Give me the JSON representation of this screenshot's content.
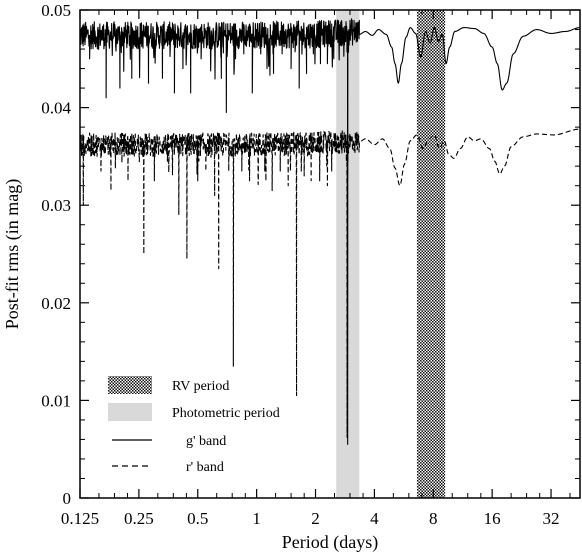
{
  "chart_data": {
    "type": "line",
    "xlabel": "Period (days)",
    "ylabel": "Post-fit rms (in mag)",
    "xscale": "log2",
    "xlim": [
      0.125,
      45
    ],
    "ylim": [
      0,
      0.05
    ],
    "x_ticks": [
      {
        "value": 0.125,
        "label": "0.125"
      },
      {
        "value": 0.25,
        "label": "0.25"
      },
      {
        "value": 0.5,
        "label": "0.5"
      },
      {
        "value": 1,
        "label": "1"
      },
      {
        "value": 2,
        "label": "2"
      },
      {
        "value": 4,
        "label": "4"
      },
      {
        "value": 8,
        "label": "8"
      },
      {
        "value": 16,
        "label": "16"
      },
      {
        "value": 32,
        "label": "32"
      }
    ],
    "y_ticks": [
      {
        "value": 0,
        "label": "0"
      },
      {
        "value": 0.01,
        "label": "0.01"
      },
      {
        "value": 0.02,
        "label": "0.02"
      },
      {
        "value": 0.03,
        "label": "0.03"
      },
      {
        "value": 0.04,
        "label": "0.04"
      },
      {
        "value": 0.05,
        "label": "0.05"
      }
    ],
    "grid": false,
    "legend_position": "bottom-left",
    "highlight_bands": [
      {
        "name": "RV period",
        "x_range": [
          6.6,
          9.2
        ],
        "style": "checkered",
        "color": "#222222"
      },
      {
        "name": "Photometric period",
        "x_range": [
          2.55,
          3.35
        ],
        "style": "solid",
        "color": "#d9d9d9"
      }
    ],
    "series": [
      {
        "name": "g' band",
        "style": "solid",
        "baseline": [
          [
            0.125,
            0.0474
          ],
          [
            0.5,
            0.0474
          ],
          [
            2,
            0.0475
          ],
          [
            3.3,
            0.0478
          ]
        ],
        "dips": [
          [
            0.14,
            0.045
          ],
          [
            0.17,
            0.041
          ],
          [
            0.2,
            0.042
          ],
          [
            0.23,
            0.043
          ],
          [
            0.28,
            0.0425
          ],
          [
            0.33,
            0.043
          ],
          [
            0.38,
            0.0415
          ],
          [
            0.42,
            0.044
          ],
          [
            0.46,
            0.0415
          ],
          [
            0.52,
            0.045
          ],
          [
            0.59,
            0.046
          ],
          [
            0.66,
            0.043
          ],
          [
            0.7,
            0.0395
          ],
          [
            0.78,
            0.045
          ],
          [
            0.86,
            0.0455
          ],
          [
            0.95,
            0.0415
          ],
          [
            1.05,
            0.0455
          ],
          [
            1.13,
            0.044
          ],
          [
            1.22,
            0.0435
          ],
          [
            1.35,
            0.0455
          ],
          [
            1.5,
            0.044
          ],
          [
            1.65,
            0.042
          ],
          [
            1.8,
            0.0435
          ],
          [
            1.95,
            0.0455
          ],
          [
            2.12,
            0.0445
          ],
          [
            2.3,
            0.0445
          ],
          [
            2.48,
            0.045
          ]
        ],
        "smooth": [
          [
            3.35,
            0.0475
          ],
          [
            3.6,
            0.0478
          ],
          [
            3.9,
            0.0474
          ],
          [
            4.2,
            0.048
          ],
          [
            4.6,
            0.0475
          ],
          [
            4.9,
            0.0462
          ],
          [
            5.1,
            0.0445
          ],
          [
            5.3,
            0.0425
          ],
          [
            5.5,
            0.0445
          ],
          [
            5.8,
            0.0472
          ],
          [
            6.1,
            0.0482
          ],
          [
            6.5,
            0.0476
          ],
          [
            6.9,
            0.0452
          ],
          [
            7.3,
            0.0478
          ],
          [
            7.7,
            0.0466
          ],
          [
            8.1,
            0.0482
          ],
          [
            8.5,
            0.0468
          ],
          [
            8.9,
            0.0475
          ],
          [
            9.3,
            0.0445
          ],
          [
            9.7,
            0.0462
          ],
          [
            10.3,
            0.0478
          ],
          [
            11.5,
            0.0482
          ],
          [
            13,
            0.0481
          ],
          [
            14.5,
            0.0476
          ],
          [
            16,
            0.0462
          ],
          [
            17,
            0.0445
          ],
          [
            18,
            0.0418
          ],
          [
            19,
            0.0425
          ],
          [
            20.5,
            0.0455
          ],
          [
            23,
            0.0473
          ],
          [
            27,
            0.048
          ],
          [
            32,
            0.0476
          ],
          [
            38,
            0.0478
          ],
          [
            45,
            0.0482
          ]
        ]
      },
      {
        "name": "r' band",
        "style": "dashed",
        "baseline": [
          [
            0.125,
            0.0362
          ],
          [
            0.5,
            0.0362
          ],
          [
            2,
            0.0363
          ],
          [
            3.3,
            0.0365
          ]
        ],
        "dips": [
          [
            0.13,
            0.03
          ],
          [
            0.16,
            0.0335
          ],
          [
            0.18,
            0.0315
          ],
          [
            0.22,
            0.0325
          ],
          [
            0.265,
            0.025
          ],
          [
            0.3,
            0.0325
          ],
          [
            0.35,
            0.0345
          ],
          [
            0.4,
            0.029
          ],
          [
            0.44,
            0.0245
          ],
          [
            0.5,
            0.0325
          ],
          [
            0.55,
            0.0335
          ],
          [
            0.61,
            0.031
          ],
          [
            0.64,
            0.0235
          ],
          [
            0.72,
            0.0335
          ],
          [
            0.76,
            0.0135
          ],
          [
            0.84,
            0.0335
          ],
          [
            0.92,
            0.0325
          ],
          [
            1.02,
            0.0325
          ],
          [
            1.1,
            0.0335
          ],
          [
            1.2,
            0.0315
          ],
          [
            1.32,
            0.0335
          ],
          [
            1.45,
            0.032
          ],
          [
            1.6,
            0.0105
          ],
          [
            1.75,
            0.033
          ],
          [
            1.9,
            0.0325
          ],
          [
            2.1,
            0.0325
          ],
          [
            2.3,
            0.032
          ],
          [
            2.42,
            0.0335
          ]
        ],
        "smooth": [
          [
            3.35,
            0.0365
          ],
          [
            3.6,
            0.0368
          ],
          [
            4,
            0.0362
          ],
          [
            4.4,
            0.0368
          ],
          [
            4.8,
            0.0358
          ],
          [
            5.1,
            0.0338
          ],
          [
            5.4,
            0.032
          ],
          [
            5.7,
            0.0342
          ],
          [
            6.1,
            0.0366
          ],
          [
            6.6,
            0.0372
          ],
          [
            7.1,
            0.0358
          ],
          [
            7.6,
            0.0368
          ],
          [
            8.1,
            0.0372
          ],
          [
            8.6,
            0.0358
          ],
          [
            9.1,
            0.0366
          ],
          [
            9.6,
            0.0352
          ],
          [
            10.2,
            0.0348
          ],
          [
            11,
            0.0358
          ],
          [
            12,
            0.037
          ],
          [
            13,
            0.0366
          ],
          [
            14,
            0.0368
          ],
          [
            15.5,
            0.0358
          ],
          [
            16.5,
            0.0345
          ],
          [
            17.5,
            0.0332
          ],
          [
            18.5,
            0.034
          ],
          [
            20,
            0.036
          ],
          [
            23,
            0.037
          ],
          [
            27,
            0.0373
          ],
          [
            33,
            0.0372
          ],
          [
            45,
            0.0378
          ]
        ]
      }
    ],
    "deep_dips": [
      {
        "series": "g' band",
        "x": 2.92,
        "y": 0.0055
      },
      {
        "series": "r' band",
        "x": 2.9,
        "y": 0.0062
      }
    ]
  }
}
